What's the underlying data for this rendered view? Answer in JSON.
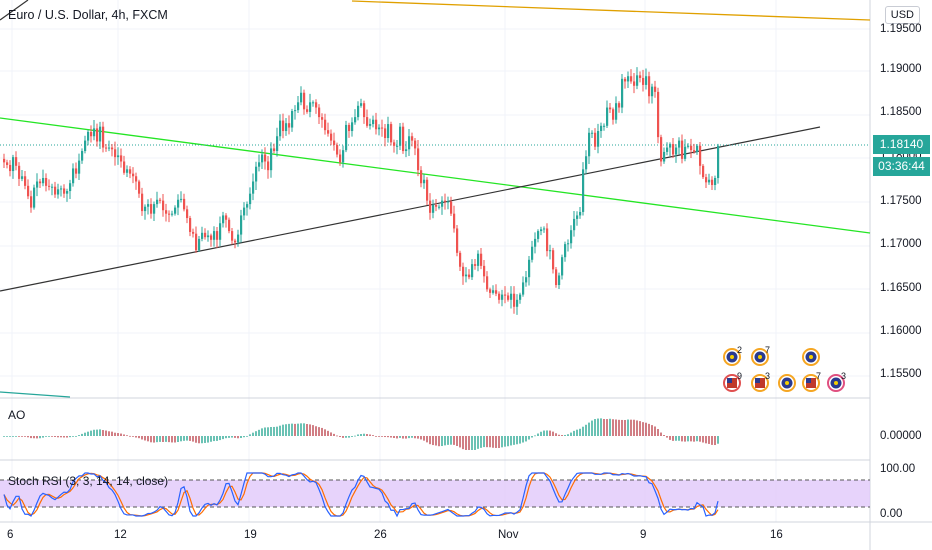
{
  "symbol": "Euro / U.S. Dollar, 4h, FXCM",
  "currency_button": "USD",
  "last_price_tag": "1.18140",
  "countdown_tag": "03:36:44",
  "colors": {
    "up": "#26a69a",
    "down": "#ef5350",
    "green_line": "#24e524",
    "trend_line": "#333333",
    "top_line": "#e0a000",
    "k_line": "#2962ff",
    "d_line": "#ff6d00",
    "band_fill": "#e1c8fa"
  },
  "price_axis_labels": [
    "1.19500",
    "1.19000",
    "1.18500",
    "1.18000",
    "1.17500",
    "1.17000",
    "1.16500",
    "1.16000",
    "1.15500"
  ],
  "ao": {
    "label": "AO",
    "axis_label": "0.00000"
  },
  "stoch_rsi": {
    "label": "Stoch RSI (3, 3, 14, 14, close)",
    "axis_labels": [
      "100.00",
      "0.00"
    ]
  },
  "time_axis_labels": [
    "6",
    "12",
    "19",
    "26",
    "Nov",
    "9",
    "16"
  ],
  "event_markers": [
    {
      "icon": "eu-flag-icon",
      "count": "2"
    },
    {
      "icon": "eu-flag-icon",
      "count": "7"
    },
    {
      "icon": "eu-flag-icon",
      "count": ""
    },
    {
      "icon": "us-flag-icon",
      "count": "9"
    },
    {
      "icon": "us-flag-icon",
      "count": "3"
    },
    {
      "icon": "eu-flag-icon",
      "count": ""
    },
    {
      "icon": "us-flag-icon",
      "count": "7"
    },
    {
      "icon": "eu-flag-icon",
      "count": "3"
    }
  ],
  "chart_data": {
    "type": "candlestick",
    "symbol": "EUR/USD",
    "interval": "4h",
    "ylim": [
      1.1525,
      1.1975
    ],
    "closes": [
      1.1795,
      1.1792,
      1.1785,
      1.1801,
      1.1791,
      1.1776,
      1.1779,
      1.1768,
      1.1756,
      1.1743,
      1.1766,
      1.1773,
      1.1771,
      1.1777,
      1.1768,
      1.1767,
      1.1767,
      1.1758,
      1.1764,
      1.1765,
      1.1759,
      1.1762,
      1.1771,
      1.1788,
      1.1782,
      1.1797,
      1.1808,
      1.182,
      1.183,
      1.1825,
      1.1834,
      1.1819,
      1.1836,
      1.1812,
      1.1811,
      1.1812,
      1.181,
      1.1801,
      1.1803,
      1.1796,
      1.1783,
      1.1787,
      1.1782,
      1.1779,
      1.1773,
      1.1759,
      1.1739,
      1.1744,
      1.1747,
      1.1736,
      1.1747,
      1.1752,
      1.1751,
      1.174,
      1.1736,
      1.1735,
      1.1736,
      1.1743,
      1.1752,
      1.1753,
      1.1741,
      1.1731,
      1.1715,
      1.1713,
      1.1694,
      1.1707,
      1.1714,
      1.1709,
      1.1711,
      1.1706,
      1.1716,
      1.1706,
      1.1725,
      1.1734,
      1.1729,
      1.1716,
      1.1705,
      1.1703,
      1.1712,
      1.1734,
      1.1743,
      1.1747,
      1.1759,
      1.1773,
      1.179,
      1.1795,
      1.1804,
      1.1796,
      1.1786,
      1.1811,
      1.1808,
      1.1825,
      1.1843,
      1.1831,
      1.184,
      1.1835,
      1.1854,
      1.1855,
      1.1864,
      1.1875,
      1.1856,
      1.1853,
      1.1864,
      1.1864,
      1.1858,
      1.1847,
      1.1844,
      1.1832,
      1.1828,
      1.182,
      1.1815,
      1.1804,
      1.1795,
      1.1809,
      1.1838,
      1.1831,
      1.1841,
      1.1847,
      1.186,
      1.1863,
      1.1847,
      1.1837,
      1.1839,
      1.1844,
      1.1833,
      1.1835,
      1.1834,
      1.1823,
      1.1839,
      1.1818,
      1.1814,
      1.1814,
      1.1836,
      1.1808,
      1.181,
      1.1825,
      1.182,
      1.1811,
      1.1786,
      1.1771,
      1.1775,
      1.1751,
      1.1737,
      1.1746,
      1.1744,
      1.1744,
      1.1751,
      1.175,
      1.175,
      1.1736,
      1.1719,
      1.1691,
      1.1675,
      1.1664,
      1.1666,
      1.1663,
      1.1678,
      1.1676,
      1.169,
      1.1676,
      1.1664,
      1.1649,
      1.1645,
      1.1648,
      1.1644,
      1.1637,
      1.1643,
      1.1642,
      1.1637,
      1.1644,
      1.1629,
      1.1637,
      1.1643,
      1.1657,
      1.1663,
      1.1683,
      1.1698,
      1.1707,
      1.1716,
      1.1718,
      1.1719,
      1.1693,
      1.1694,
      1.1672,
      1.1654,
      1.1665,
      1.1686,
      1.1701,
      1.1702,
      1.1717,
      1.173,
      1.1734,
      1.1738,
      1.1787,
      1.1802,
      1.1829,
      1.1829,
      1.1813,
      1.1831,
      1.1837,
      1.1837,
      1.1858,
      1.1856,
      1.1844,
      1.1863,
      1.1858,
      1.1891,
      1.1888,
      1.1894,
      1.1888,
      1.1883,
      1.1895,
      1.1892,
      1.1884,
      1.1894,
      1.1871,
      1.1882,
      1.1876,
      1.1824,
      1.1796,
      1.1807,
      1.1812,
      1.1816,
      1.1804,
      1.1812,
      1.182,
      1.1799,
      1.1813,
      1.1814,
      1.1809,
      1.1807,
      1.1814,
      1.1791,
      1.1778,
      1.1772,
      1.1775,
      1.1769,
      1.1777,
      1.1814
    ]
  }
}
